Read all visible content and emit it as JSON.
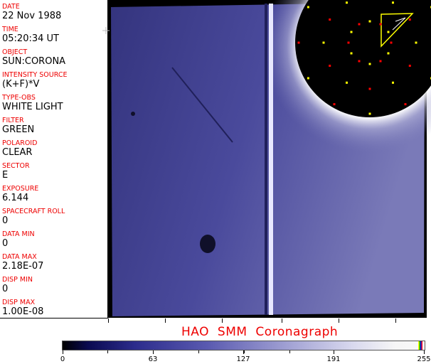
{
  "fields": [
    {
      "label": "DATE",
      "value": "22 Nov 1988"
    },
    {
      "label": "TIME",
      "value": "05:20:34 UT"
    },
    {
      "label": "OBJECT",
      "value": "SUN:CORONA"
    },
    {
      "label": "INTENSITY SOURCE",
      "value": "(K+F)*V"
    },
    {
      "label": "TYPE-OBS",
      "value": "WHITE LIGHT"
    },
    {
      "label": "FILTER",
      "value": "GREEN"
    },
    {
      "label": "POLAROID",
      "value": "CLEAR"
    },
    {
      "label": "SECTOR",
      "value": "E"
    },
    {
      "label": "EXPOSURE",
      "value": "6.144"
    },
    {
      "label": "SPACECRAFT ROLL",
      "value": "0"
    },
    {
      "label": "DATA MIN",
      "value": "0"
    },
    {
      "label": "DATA MAX",
      "value": "2.18E-07"
    },
    {
      "label": "DISP MIN",
      "value": "0"
    },
    {
      "label": "DISP MAX",
      "value": "1.00E-08"
    }
  ],
  "title": "HAO  SMM Coronagraph",
  "colorbar": {
    "ticks": [
      "0",
      "63",
      "127",
      "191",
      "255"
    ],
    "colors": {
      "low": "#000000",
      "mid": "#5a5ab0",
      "high": "#f8f8f8"
    },
    "overlay_colors": [
      "#ffff00",
      "#00aa00",
      "#0000ff",
      "#ff0000"
    ]
  }
}
